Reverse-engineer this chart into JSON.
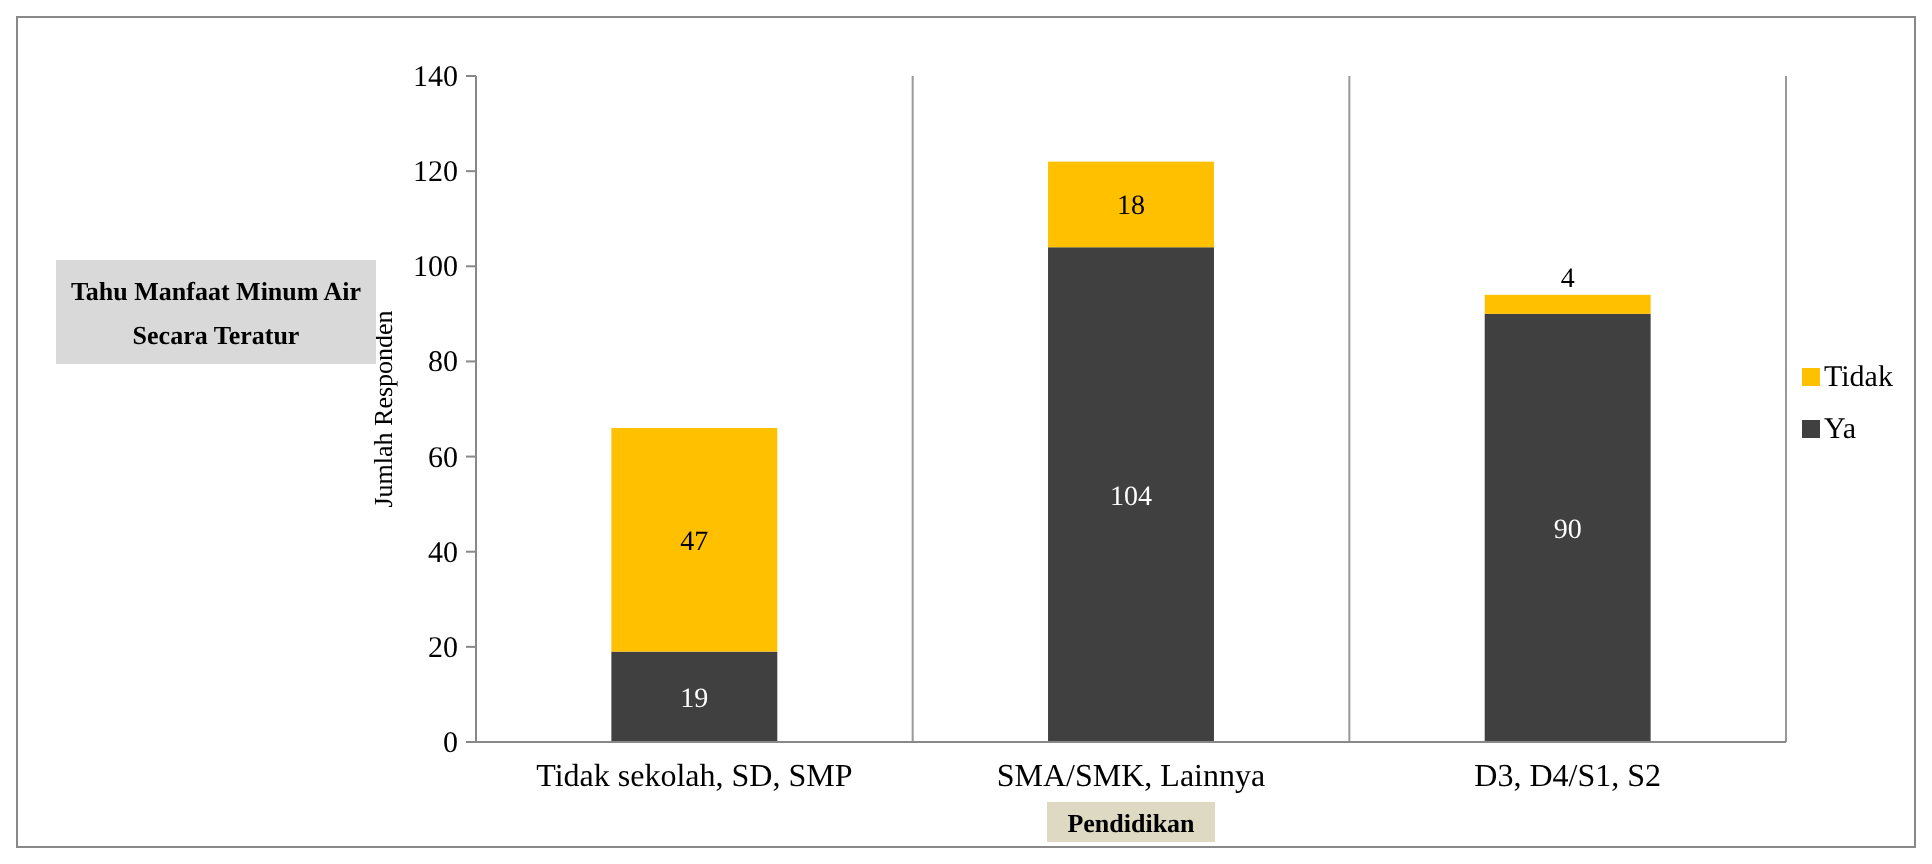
{
  "chart_data": {
    "type": "bar",
    "title": "Tahu Manfaat Minum Air Secara Teratur",
    "xlabel": "Pendidikan",
    "ylabel": "Jumlah Responden",
    "categories": [
      "Tidak sekolah, SD, SMP",
      "SMA/SMK, Lainnya",
      "D3, D4/S1, S2"
    ],
    "stacked": true,
    "series": [
      {
        "name": "Ya",
        "color": "#404040",
        "values": [
          19,
          104,
          90
        ]
      },
      {
        "name": "Tidak",
        "color": "#ffc000",
        "values": [
          47,
          18,
          4
        ]
      }
    ],
    "ylim": [
      0,
      140
    ],
    "yticks": [
      0,
      20,
      40,
      60,
      80,
      100,
      120,
      140
    ],
    "grid": "x",
    "legend": "right",
    "data_labels": true
  }
}
